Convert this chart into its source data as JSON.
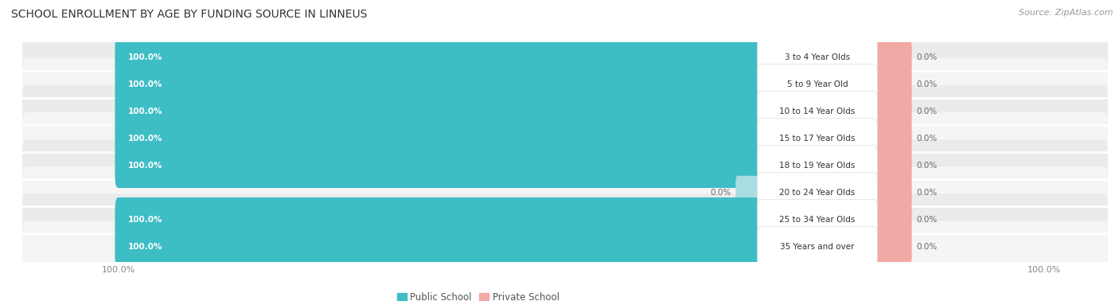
{
  "title": "SCHOOL ENROLLMENT BY AGE BY FUNDING SOURCE IN LINNEUS",
  "source": "Source: ZipAtlas.com",
  "categories": [
    "3 to 4 Year Olds",
    "5 to 9 Year Old",
    "10 to 14 Year Olds",
    "15 to 17 Year Olds",
    "18 to 19 Year Olds",
    "20 to 24 Year Olds",
    "25 to 34 Year Olds",
    "35 Years and over"
  ],
  "public_values": [
    100.0,
    100.0,
    100.0,
    100.0,
    100.0,
    0.0,
    100.0,
    100.0
  ],
  "private_values": [
    0.0,
    0.0,
    0.0,
    0.0,
    0.0,
    0.0,
    0.0,
    0.0
  ],
  "public_color": "#3DBDC4",
  "public_color_light": "#A8DEE1",
  "private_color": "#F2A8A4",
  "row_colors": [
    "#EBEBEB",
    "#F5F5F5",
    "#EBEBEB",
    "#F5F5F5",
    "#EBEBEB",
    "#F5F5F5",
    "#EBEBEB",
    "#F5F5F5"
  ],
  "title_fontsize": 10,
  "tick_fontsize": 8,
  "legend_fontsize": 8.5,
  "source_fontsize": 8
}
